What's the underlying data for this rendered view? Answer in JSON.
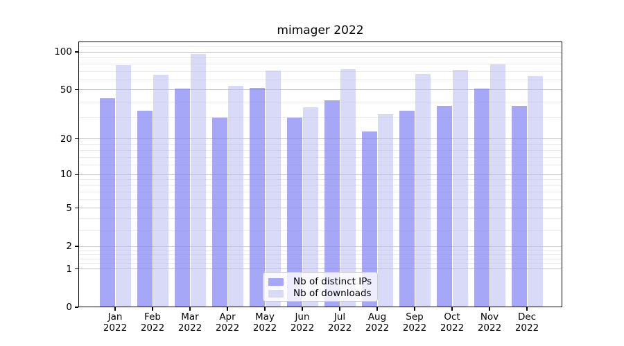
{
  "title": "mimager 2022",
  "chart_data": {
    "type": "bar",
    "categories": [
      "Jan",
      "Feb",
      "Mar",
      "Apr",
      "May",
      "Jun",
      "Jul",
      "Aug",
      "Sep",
      "Oct",
      "Nov",
      "Dec"
    ],
    "year_label": "2022",
    "series": [
      {
        "name": "Nb of distinct IPs",
        "values": [
          43,
          34,
          51,
          30,
          52,
          30,
          41,
          23,
          34,
          37,
          51,
          37
        ],
        "color": "rgba(133,133,245,0.72)",
        "swatch_color": "#a7a7f7"
      },
      {
        "name": "Nb of downloads",
        "values": [
          79,
          66,
          97,
          54,
          71,
          36,
          73,
          32,
          67,
          72,
          80,
          64
        ],
        "color": "rgba(186,186,242,0.55)",
        "swatch_color": "#d9d9f8"
      }
    ],
    "yscale": "log1p",
    "yticks": [
      0,
      1,
      2,
      5,
      10,
      20,
      50,
      100
    ],
    "yticks_minor": [
      1.2,
      1.4,
      1.6,
      1.8,
      3,
      4,
      6,
      7,
      8,
      9,
      12,
      14,
      16,
      18,
      30,
      40,
      60,
      70,
      80,
      90,
      110
    ],
    "ylim": [
      0,
      121
    ],
    "xlabel": "",
    "ylabel": "",
    "grid": "on",
    "legend_position": "lower center"
  },
  "colors": {
    "background": "#ffffff",
    "grid_major": "#c3c3c3",
    "grid_minor": "#e9e9e9",
    "axis": "#000000",
    "text": "#000000"
  }
}
